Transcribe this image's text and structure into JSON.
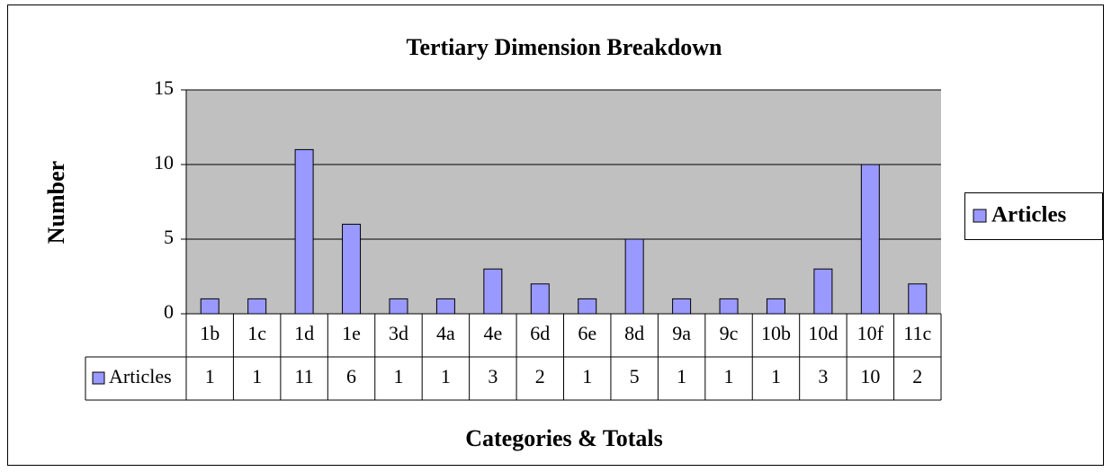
{
  "chart_data": {
    "type": "bar",
    "title": "Tertiary Dimension Breakdown",
    "x_label": "Categories & Totals",
    "y_label": "Number",
    "categories": [
      "1b",
      "1c",
      "1d",
      "1e",
      "3d",
      "4a",
      "4e",
      "6d",
      "6e",
      "8d",
      "9a",
      "9c",
      "10b",
      "10d",
      "10f",
      "11c"
    ],
    "series": [
      {
        "name": "Articles",
        "color": "#9999ff",
        "values": [
          1,
          1,
          11,
          6,
          1,
          1,
          3,
          2,
          1,
          5,
          1,
          1,
          1,
          3,
          10,
          2
        ]
      }
    ],
    "ylim": [
      0,
      15
    ],
    "yticks": [
      0,
      5,
      10,
      15
    ],
    "grid": true,
    "legend": "right",
    "data_table": true
  }
}
